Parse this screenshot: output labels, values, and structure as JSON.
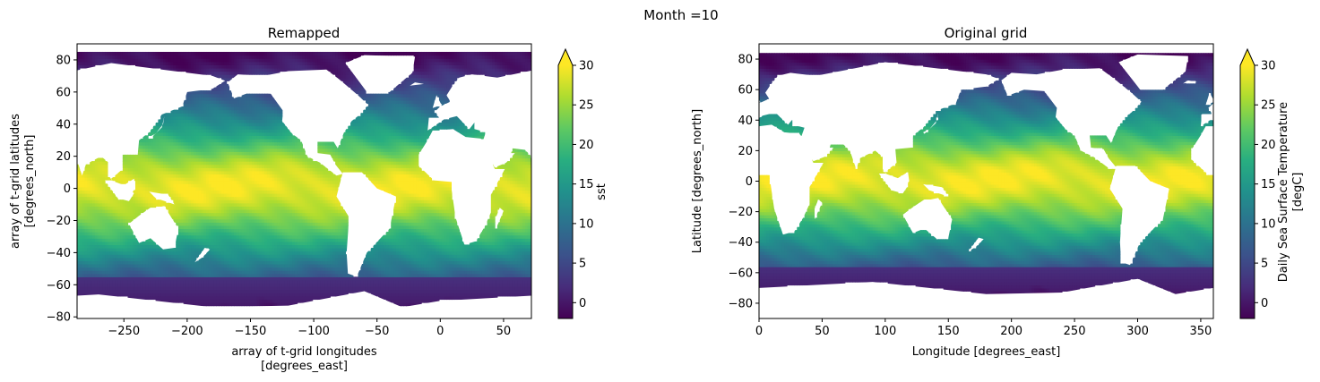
{
  "suptitle": "Month =10",
  "chart_data": [
    {
      "type": "heatmap",
      "title": "Remapped",
      "xlabel_lines": [
        "array of t-grid longitudes",
        "[degrees_east]"
      ],
      "ylabel_lines": [
        "array of t-grid latitudes",
        "[degrees_north]"
      ],
      "xlim": [
        -287,
        72
      ],
      "ylim": [
        -81,
        90
      ],
      "xticks": [
        -250,
        -200,
        -150,
        -100,
        -50,
        0,
        50
      ],
      "yticks": [
        -80,
        -60,
        -40,
        -20,
        0,
        20,
        40,
        60,
        80
      ],
      "lon_offset": -360,
      "colorbar": {
        "label_lines": [
          "sst"
        ],
        "vmin": -2,
        "vmax": 30,
        "extend": "max",
        "ticks": [
          0,
          5,
          10,
          15,
          20,
          25,
          30
        ]
      },
      "colormap": "viridis",
      "variable": "sea surface temperature"
    },
    {
      "type": "heatmap",
      "title": "Original grid",
      "xlabel_lines": [
        "Longitude [degrees_east]"
      ],
      "ylabel_lines": [
        "Latitude [degrees_north]"
      ],
      "xlim": [
        0,
        360
      ],
      "ylim": [
        -90,
        90
      ],
      "xticks": [
        0,
        50,
        100,
        150,
        200,
        250,
        300,
        350
      ],
      "yticks": [
        -80,
        -60,
        -40,
        -20,
        0,
        20,
        40,
        60,
        80
      ],
      "lon_offset": 0,
      "colorbar": {
        "label_lines": [
          "Daily Sea Surface Temperature",
          "[degC]"
        ],
        "vmin": -2,
        "vmax": 30,
        "extend": "max",
        "ticks": [
          0,
          5,
          10,
          15,
          20,
          25,
          30
        ]
      },
      "colormap": "viridis",
      "variable": "sea surface temperature"
    }
  ]
}
